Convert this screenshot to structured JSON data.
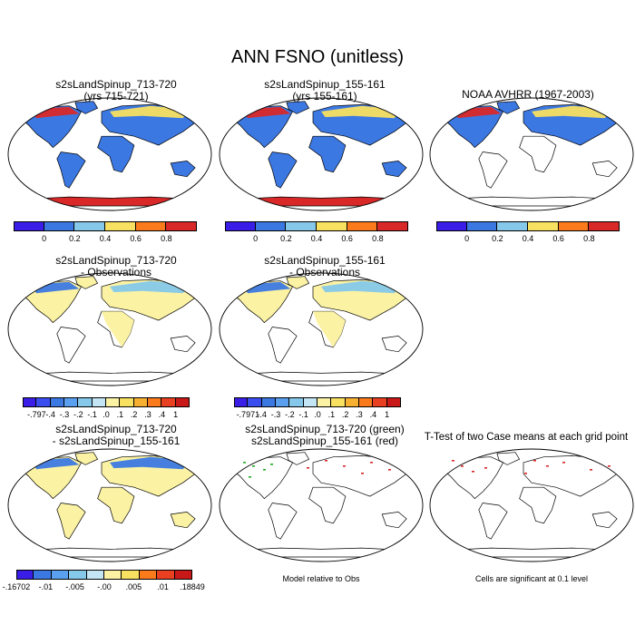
{
  "figure_title": "ANN FSNO (unitless)",
  "panels": {
    "p1": {
      "title1": "s2sLandSpinup_713-720",
      "title2": "(yrs 715-721)"
    },
    "p2": {
      "title1": "s2sLandSpinup_155-161",
      "title2": "(yrs 155-161)"
    },
    "p3": {
      "title1": "NOAA AVHRR (1967-2003)",
      "title2": ""
    },
    "p4": {
      "title1": "s2sLandSpinup_713-720",
      "title2": "- Observations"
    },
    "p5": {
      "title1": "s2sLandSpinup_155-161",
      "title2": "- Observations"
    },
    "p7": {
      "title1": "s2sLandSpinup_713-720",
      "title2": "- s2sLandSpinup_155-161"
    },
    "p8": {
      "title1": "s2sLandSpinup_713-720 (green)",
      "title2": "s2sLandSpinup_155-161 (red)",
      "note": "Model relative to Obs"
    },
    "p9": {
      "title1": "T-Test of two Case means at each grid point",
      "title2": "",
      "note": "Cells are significant at 0.1 level"
    }
  },
  "colorbars": {
    "abs": {
      "colors": [
        "#3a1ee8",
        "#3c78e2",
        "#86c8ea",
        "#f8e060",
        "#fa7a1c",
        "#d82828"
      ],
      "labels": [
        "0",
        "0.2",
        "0.4",
        "0.6",
        "0.8"
      ]
    },
    "diff1": {
      "colors": [
        "#3a1ee8",
        "#3a4ef0",
        "#3c78e2",
        "#5aa0ee",
        "#86c8ea",
        "#c4e6f4",
        "#fbf2a4",
        "#f8e060",
        "#f8b030",
        "#fa7a1c",
        "#e84020",
        "#c81818"
      ],
      "labels": [
        "-.797",
        "-.4",
        "-.3",
        "-.2",
        "-.1",
        ".0",
        ".1",
        ".2",
        ".3",
        ".4",
        "1"
      ]
    },
    "diff2": {
      "colors": [
        "#3a1ee8",
        "#3a4ef0",
        "#3c78e2",
        "#5aa0ee",
        "#86c8ea",
        "#c4e6f4",
        "#fbf2a4",
        "#f8e060",
        "#f8b030",
        "#fa7a1c",
        "#e84020",
        "#c81818"
      ],
      "labels": [
        "-.7971",
        "-.4",
        "-.3",
        "-.2",
        "-.1",
        ".0",
        ".1",
        ".2",
        ".3",
        ".4",
        "1"
      ]
    },
    "diff3": {
      "colors": [
        "#3a1ee8",
        "#3c78e2",
        "#5aa0ee",
        "#86c8ea",
        "#c4e6f4",
        "#fbf2a4",
        "#f8e060",
        "#fa7a1c",
        "#e84020",
        "#c81818"
      ],
      "labels": [
        "-.16702",
        "-.01",
        "-.005",
        "-.00",
        ".005",
        ".01",
        ".18849"
      ]
    }
  },
  "colors": {
    "land_low": "#3c78e2",
    "land_high": "#d82828",
    "land_mid": "#f8e060",
    "diff_base": "#fbf2a4",
    "sig_red": "#d82828",
    "sig_green": "#22aa22"
  }
}
